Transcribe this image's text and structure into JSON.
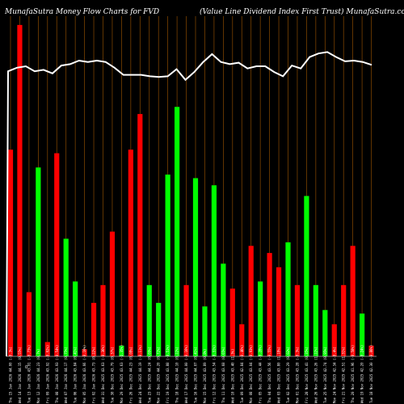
{
  "header": {
    "left_title": "MunafaSutra  Money Flow  Charts for FVD",
    "right_title": "(Value    Line    Dividend Index First Trust) MunafaSutra.com"
  },
  "chart_data": {
    "type": "bar",
    "title": "MunafaSutra  Money Flow  Charts for FVD",
    "subtitle": "(Value    Line    Dividend Index First Trust) MunafaSutra.com",
    "y_zero_label": "0",
    "grid": true,
    "grid_color": "#8a4a00",
    "background": "#000000",
    "colors": {
      "up": "#00ff00",
      "down": "#ff0000",
      "price_line": "#ffffff"
    },
    "categories": [
      "Thu 15 Jan 2026 44.00 (-0.3%)",
      "Wed 14 Jan 2026 44.15 (0.55%)",
      "Tue 13 Jan 2026 43.91 (-0.73%)",
      "Mon 12 Jan 2026 44.23 (0.7%)",
      "Fri 09 Jan 2026 43.92 (-0.02%)",
      "Thu 08 Jan 2026 43.93 (-0.54%)",
      "Wed 07 Jan 2026 44.17 (0.75%)",
      "Tue 06 Jan 2026 43.84 (0.41%)",
      "Mon 05 Jan 2026 43.66 (-0.16%)",
      "Fri 02 Jan 2026 43.73 (0.22%)",
      "Wed 31 Dec 2025 43.63 (-0.36%)",
      "Tue 30 Dec 2025 43.79 (0.37%)",
      "Mon 29 Dec 2025 43.63 (-1.35%)",
      "Fri 26 Dec 2025 44.23 (0.08%)",
      "Wed 24 Dec 2025 44.19 (-0.11%)",
      "Tue 23 Dec 2025 44.24 (0.09%)",
      "Mon 22 Dec 2025 44.20 (0.72%)",
      "Fri 19 Dec 2025 43.88 (-0.51%)",
      "Thu 18 Dec 2025 44.10 (0.22%)",
      "Wed 17 Dec 2025 44.00 (-0.16%)",
      "Tue 16 Dec 2025 44.07 (0.41%)",
      "Mon 15 Dec 2025 43.89 (0.8%)",
      "Fri 12 Dec 2025 43.54 (-0.31%)",
      "Thu 11 Dec 2025 43.68 (0.65%)",
      "Wed 10 Dec 2025 43.40 (1.3%)",
      "Tue 09 Dec 2025 42.84 (-0.46%)",
      "Mon 08 Dec 2025 43.04 (-0.93%)",
      "Fri 05 Dec 2025 43.44 (-0.28%)",
      "Thu 04 Dec 2025 43.56 (-0.55%)",
      "Wed 03 Dec 2025 43.80 (1.18%)",
      "Tue 02 Dec 2025 43.29 (0.02%)",
      "Mon 01 Dec 2025 43.28 (-0.3%)",
      "Fri 28 Nov 2025 43.41 (0.35%)",
      "Wed 26 Nov 2025 43.26 (1.22%)",
      "Tue 25 Nov 2025 42.74 (0.95%)",
      "Mon 24 Nov 2025 42.34 (-0.4%)",
      "Fri 21 Nov 2025 42.51 (1.31%)",
      "Thu 20 Nov 2025 41.96 (-0.58%)",
      "Wed 19 Nov 2025 42.20 (-0.24%)",
      "Tue 18 Nov 2025 42.30 (-0.86%)"
    ],
    "values": [
      58,
      93,
      18,
      53,
      4,
      57,
      33,
      21,
      2,
      15,
      20,
      35,
      3,
      58,
      68,
      20,
      15,
      51,
      70,
      20,
      50,
      14,
      48,
      26,
      19,
      9,
      31,
      21,
      29,
      25,
      32,
      20,
      45,
      20,
      13,
      9,
      20,
      31,
      12,
      3
    ],
    "directions": [
      "down",
      "down",
      "down",
      "up",
      "down",
      "down",
      "up",
      "up",
      "down",
      "down",
      "down",
      "down",
      "up",
      "down",
      "down",
      "up",
      "up",
      "up",
      "up",
      "down",
      "up",
      "up",
      "up",
      "up",
      "down",
      "down",
      "down",
      "up",
      "down",
      "down",
      "up",
      "down",
      "up",
      "up",
      "up",
      "down",
      "down",
      "down",
      "up",
      "down"
    ],
    "price_series": [
      44.0,
      44.05,
      44.07,
      44.0,
      44.02,
      43.97,
      44.08,
      44.1,
      44.15,
      44.13,
      44.15,
      44.13,
      44.05,
      43.95,
      43.95,
      43.95,
      43.93,
      43.92,
      43.93,
      44.03,
      43.88,
      43.99,
      44.13,
      44.24,
      44.13,
      44.1,
      44.12,
      44.04,
      44.07,
      44.07,
      43.99,
      43.93,
      44.08,
      44.04,
      44.2,
      44.25,
      44.27,
      44.2,
      44.14,
      44.15,
      44.13,
      44.09
    ],
    "ylim": [
      0,
      100
    ],
    "price_ylim": [
      40,
      45
    ]
  }
}
